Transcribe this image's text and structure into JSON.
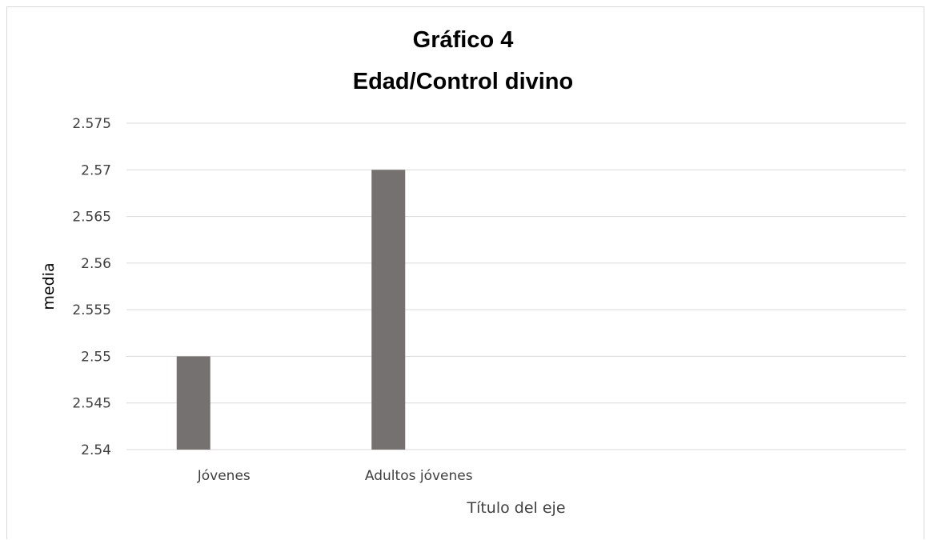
{
  "chart_data": {
    "type": "bar",
    "title": "Gráfico 4",
    "subtitle": "Edad/Control divino",
    "categories": [
      "Jóvenes",
      "Adultos jóvenes",
      "",
      ""
    ],
    "series": [
      {
        "values": [
          2.55,
          2.57,
          null,
          null
        ]
      }
    ],
    "xlabel": "Título del eje",
    "ylabel": "media",
    "ylim": [
      2.54,
      2.575
    ],
    "yticks": [
      "2.54",
      "2.545",
      "2.55",
      "2.555",
      "2.56",
      "2.565",
      "2.57",
      "2.575"
    ],
    "grid": true,
    "legend": "none",
    "bar_color": "#767171",
    "grid_color": "#d9d9d9"
  }
}
